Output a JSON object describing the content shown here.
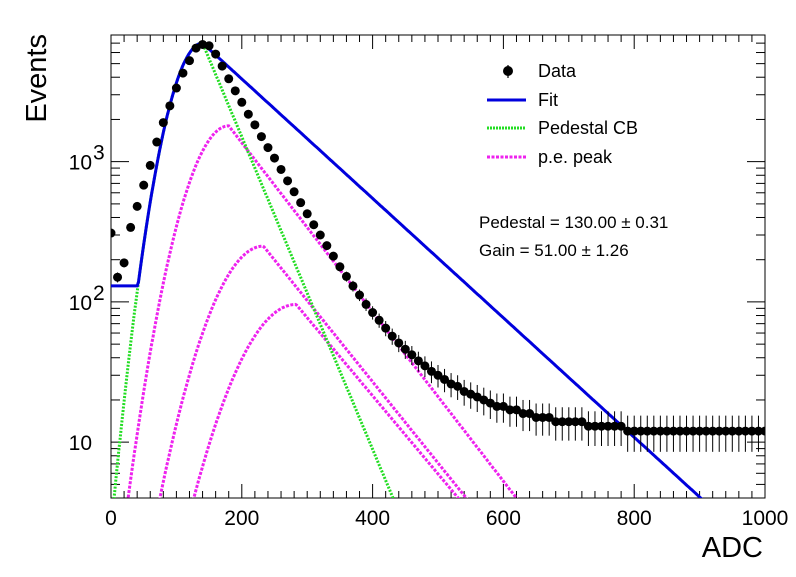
{
  "chart_data": {
    "type": "scatter",
    "xlabel": "ADC",
    "ylabel": "Events",
    "xlim": [
      0,
      1000
    ],
    "ylim": [
      4,
      8000
    ],
    "y_scale": "log",
    "x_ticks": [
      "0",
      "200",
      "400",
      "600",
      "800",
      "1000"
    ],
    "y_ticks": [
      {
        "value": 10,
        "label": "10"
      },
      {
        "value": 100,
        "label": "10",
        "sup": "2"
      },
      {
        "value": 1000,
        "label": "10",
        "sup": "3"
      }
    ],
    "grid": false,
    "legend": {
      "position": "top-right",
      "entries": [
        {
          "key": "data",
          "label": "Data",
          "color": "#000000"
        },
        {
          "key": "fit",
          "label": "Fit",
          "color": "#0000dd"
        },
        {
          "key": "ped",
          "label": "Pedestal CB",
          "color": "#22dd22"
        },
        {
          "key": "pe",
          "label": "p.e. peak",
          "color": "#ee22ee"
        }
      ]
    },
    "annotations": {
      "pedestal": "Pedestal = 130.00 ± 0.31",
      "gain": "Gain = 51.00 ± 1.26"
    },
    "model": {
      "fit": {
        "base": 130,
        "peak_x": 140,
        "peak_y": 7000,
        "sigma_left": 35,
        "tail_scale": 102
      },
      "pedestal_cb": {
        "base": 110,
        "peak_x": 140,
        "peak_y": 7000,
        "sigma_left": 35,
        "tail_scale": 39
      },
      "pe_peaks": [
        {
          "peak_x": 180,
          "peak_y": 1800,
          "sigma_left": 44,
          "tail_scale": 72
        },
        {
          "peak_x": 233,
          "peak_y": 250,
          "sigma_left": 55,
          "tail_scale": 75
        },
        {
          "peak_x": 283,
          "peak_y": 96,
          "sigma_left": 62,
          "tail_scale": 78
        }
      ]
    },
    "series": [
      {
        "name": "Data",
        "x": [
          0,
          10,
          20,
          30,
          40,
          50,
          60,
          70,
          80,
          90,
          100,
          110,
          120,
          130,
          140,
          150,
          160,
          170,
          180,
          190,
          200,
          210,
          220,
          230,
          240,
          250,
          260,
          270,
          280,
          290,
          300,
          310,
          320,
          330,
          340,
          350,
          360,
          370,
          380,
          390,
          400,
          410,
          420,
          430,
          440,
          450,
          460,
          470,
          480,
          490,
          500,
          510,
          520,
          530,
          540,
          550,
          560,
          570,
          580,
          590,
          600,
          610,
          620,
          630,
          640,
          650,
          660,
          670,
          680,
          690,
          700,
          710,
          720,
          730,
          740,
          750,
          760,
          770,
          780,
          790,
          800,
          810,
          820,
          830,
          840,
          850,
          860,
          870,
          880,
          890,
          900,
          910,
          920,
          930,
          940,
          950,
          960,
          970,
          980,
          990,
          1000
        ],
        "y": [
          310,
          150,
          190,
          340,
          480,
          680,
          940,
          1380,
          1900,
          2500,
          3350,
          4280,
          5250,
          6450,
          6850,
          6700,
          5850,
          4800,
          3900,
          3200,
          2650,
          2180,
          1830,
          1510,
          1260,
          1060,
          880,
          730,
          610,
          510,
          425,
          355,
          300,
          252,
          212,
          178,
          152,
          130,
          112,
          96,
          84,
          74,
          65,
          57,
          51,
          46,
          42,
          38,
          35,
          32,
          30,
          28,
          26,
          25,
          23,
          22,
          21,
          20,
          19,
          18,
          18,
          17,
          17,
          16,
          16,
          15,
          15,
          15,
          14,
          14,
          14,
          14,
          14,
          13,
          13,
          13,
          13,
          13,
          13,
          12,
          12,
          12,
          12,
          12,
          12,
          12,
          12,
          12,
          12,
          12,
          12,
          12,
          12,
          12,
          12,
          12,
          12,
          12,
          12,
          12,
          12
        ]
      }
    ]
  }
}
